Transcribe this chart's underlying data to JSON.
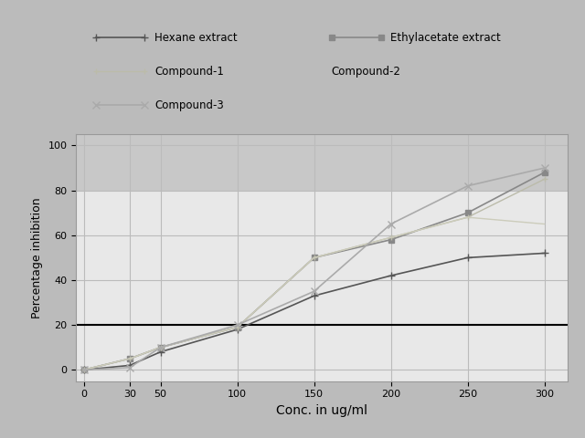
{
  "x": [
    0,
    30,
    50,
    100,
    150,
    200,
    250,
    300
  ],
  "series_order": [
    "Hexane extract",
    "Ethylacetate extract",
    "Compound-1",
    "Compound-2",
    "Compound-3"
  ],
  "series": {
    "Hexane extract": {
      "y": [
        0,
        2,
        8,
        18,
        33,
        42,
        50,
        52
      ],
      "color": "#555555",
      "marker": "+",
      "markersize": 6,
      "linewidth": 1.2,
      "linestyle": "-"
    },
    "Ethylacetate extract": {
      "y": [
        0,
        5,
        10,
        19,
        50,
        58,
        70,
        88
      ],
      "color": "#888888",
      "marker": "s",
      "markersize": 5,
      "linewidth": 1.2,
      "linestyle": "-"
    },
    "Compound-1": {
      "y": [
        0,
        5,
        10,
        19,
        50,
        59,
        68,
        85
      ],
      "color": "#bbbbaa",
      "marker": "+",
      "markersize": 5,
      "linewidth": 1.0,
      "linestyle": "-"
    },
    "Compound-2": {
      "y": [
        0,
        5,
        10,
        19,
        50,
        59,
        68,
        65
      ],
      "color": "#ccccbb",
      "marker": "None",
      "markersize": 5,
      "linewidth": 1.0,
      "linestyle": "-"
    },
    "Compound-3": {
      "y": [
        0,
        1,
        10,
        20,
        35,
        65,
        82,
        90
      ],
      "color": "#aaaaaa",
      "marker": "x",
      "markersize": 6,
      "linewidth": 1.2,
      "linestyle": "-"
    }
  },
  "xlabel": "Conc. in ug/ml",
  "ylabel": "Percentage inhibition",
  "xlim": [
    -5,
    315
  ],
  "ylim": [
    -5,
    105
  ],
  "xticks": [
    0,
    30,
    50,
    100,
    150,
    200,
    250,
    300
  ],
  "yticks": [
    0,
    20,
    40,
    60,
    80,
    100
  ],
  "grid_color": "#bbbbbb",
  "plot_bg_top": "#d8d8d8",
  "plot_bg_bottom": "#e8e8e8",
  "outer_bg": "#bbbbbb",
  "legend_bg": "#e0e0e0",
  "bold_line_y": 20,
  "shaded_top_start": 80,
  "shaded_top_end": 105,
  "shaded_top_color": "#c8c8c8"
}
